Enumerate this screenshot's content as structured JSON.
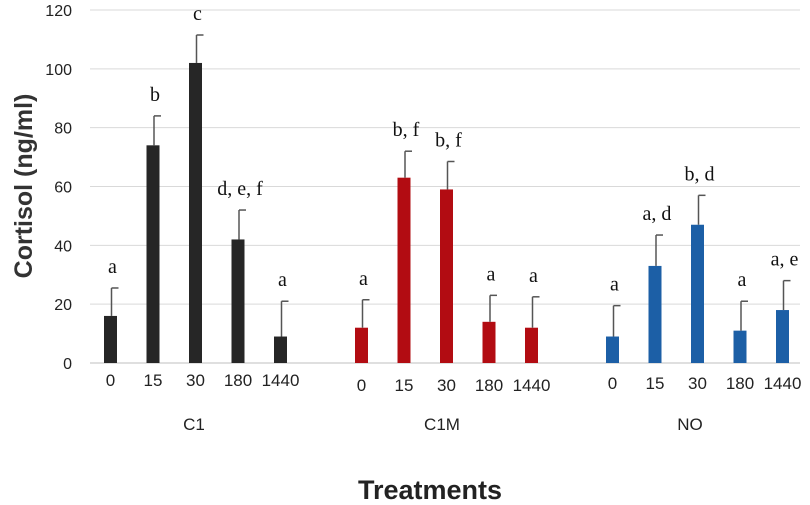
{
  "chart_data": {
    "type": "bar",
    "title": "",
    "xlabel": "Treatments",
    "ylabel": "Cortisol (ng/ml)",
    "ylim": [
      0,
      120
    ],
    "yticks": [
      "0",
      "20",
      "40",
      "60",
      "80",
      "100",
      "120"
    ],
    "grid": true,
    "groups": [
      {
        "name": "C1",
        "color": "#262626",
        "categories": [
          "0",
          "15",
          "30",
          "180",
          "1440"
        ],
        "values": [
          16,
          74,
          102,
          42,
          9
        ],
        "errors": [
          9.5,
          10,
          9.5,
          10,
          12
        ],
        "labels": [
          "a",
          "b",
          "c",
          "d, e, f",
          "a"
        ]
      },
      {
        "name": "C1M",
        "color": "#b20c12",
        "categories": [
          "0",
          "15",
          "30",
          "180",
          "1440"
        ],
        "values": [
          12,
          63,
          59,
          14,
          12
        ],
        "errors": [
          9.5,
          9,
          9.5,
          9,
          10.5
        ],
        "labels": [
          "a",
          "b, f",
          "b, f",
          "a",
          "a"
        ]
      },
      {
        "name": "NO",
        "color": "#1c5fa6",
        "categories": [
          "0",
          "15",
          "30",
          "180",
          "1440"
        ],
        "values": [
          9,
          33,
          47,
          11,
          18
        ],
        "errors": [
          10.5,
          10.5,
          10,
          10,
          10
        ],
        "labels": [
          "a",
          "a, d",
          "b, d",
          "a",
          "a, e"
        ]
      }
    ]
  }
}
